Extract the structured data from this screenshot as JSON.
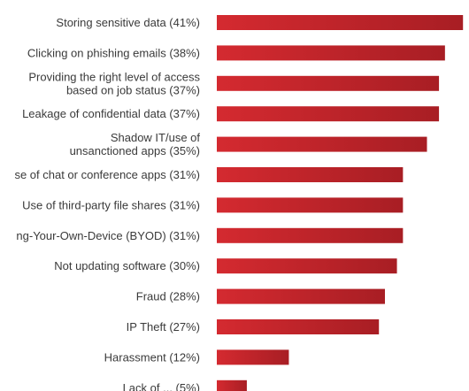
{
  "chart_data": {
    "type": "bar",
    "orientation": "horizontal",
    "categories": [
      [
        "Storing sensitive data (41%)"
      ],
      [
        "Clicking on phishing emails (38%)"
      ],
      [
        "Providing the right level of access",
        "based on job status  (37%)"
      ],
      [
        "Leakage of confidential data (37%)"
      ],
      [
        "Shadow IT/use of",
        "unsanctioned apps (35%)"
      ],
      [
        "se of chat or conference apps (31%)"
      ],
      [
        "Use of third-party file shares (31%)"
      ],
      [
        "ng-Your-Own-Device (BYOD) (31%)"
      ],
      [
        "Not updating software (30%)"
      ],
      [
        "Fraud (28%)"
      ],
      [
        "IP Theft (27%)"
      ],
      [
        "Harassment (12%)"
      ],
      [
        "Lack of ... (5%)"
      ]
    ],
    "values": [
      41,
      38,
      37,
      37,
      35,
      31,
      31,
      31,
      30,
      28,
      27,
      12,
      5
    ],
    "xlim": [
      0,
      42
    ],
    "bar_color": "#d42a30",
    "bar_color_end": "#a81e24",
    "grid": false,
    "legend": "none"
  }
}
